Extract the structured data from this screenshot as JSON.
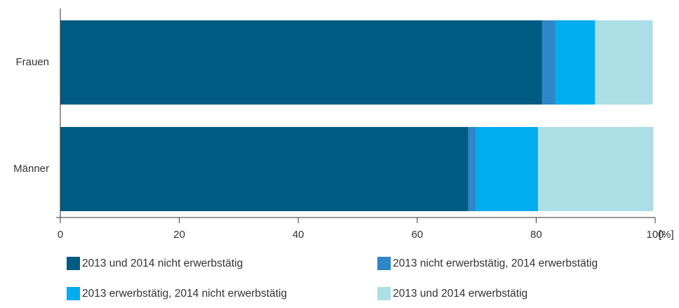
{
  "chart_data": {
    "type": "bar",
    "orientation": "horizontal",
    "stacked": true,
    "categories": [
      "Frauen",
      "Männer"
    ],
    "series": [
      {
        "name": "2013 und 2014 nicht erwerbstätig",
        "color": "#005b82",
        "values": [
          81.0,
          68.6
        ]
      },
      {
        "name": "2013 nicht erwerbstätig, 2014 erwerbstätig",
        "color": "#2f86c8",
        "values": [
          2.2,
          1.3
        ]
      },
      {
        "name": "2013 erwerbstätig, 2014 nicht erwerbstätig",
        "color": "#00adef",
        "values": [
          6.7,
          10.4
        ]
      },
      {
        "name": "2013 und 2014 erwerbstätig",
        "color": "#acdee6",
        "values": [
          9.7,
          19.4
        ]
      }
    ],
    "xlim": [
      0,
      100
    ],
    "xticks": [
      "0",
      "20",
      "40",
      "60",
      "80",
      "100"
    ],
    "xunit": "[%]",
    "title": "",
    "xlabel": "",
    "ylabel": "",
    "grid": false,
    "legend_position": "bottom"
  }
}
